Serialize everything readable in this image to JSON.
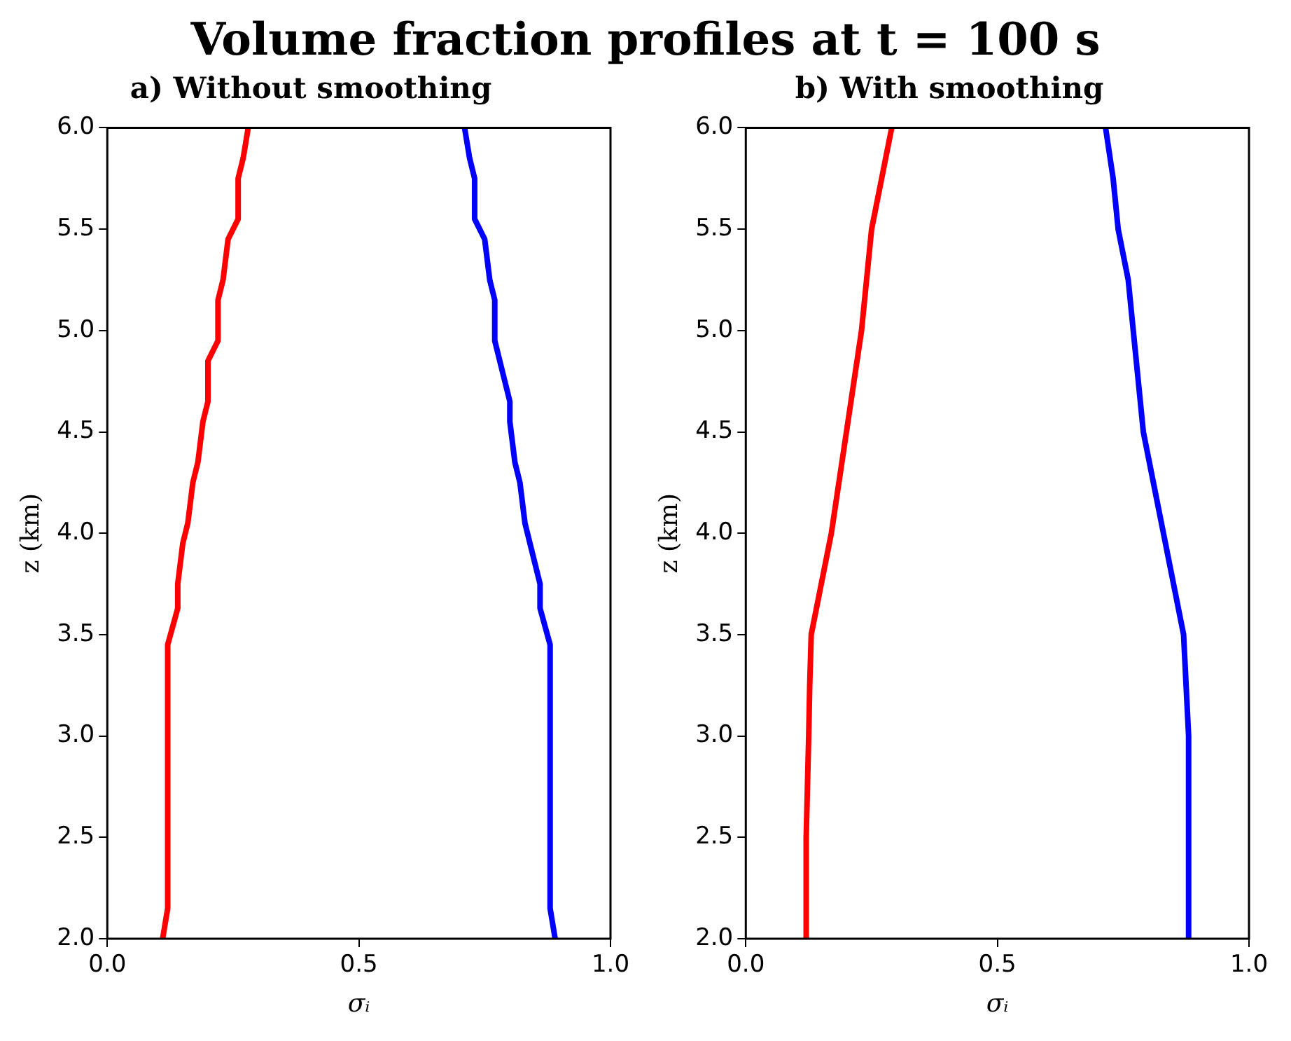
{
  "chart_data": [
    {
      "type": "line",
      "title": "Volume fraction profiles at t = 100 s",
      "subtitle": "a) Without smoothing",
      "xlabel": "σᵢ",
      "ylabel": "z (km)",
      "xlim": [
        0,
        1
      ],
      "xticks": [
        {
          "value": 0,
          "label": "0.0"
        },
        {
          "value": 0.5,
          "label": "0.5"
        },
        {
          "value": 1,
          "label": "1.0"
        }
      ],
      "ylim": [
        2,
        6
      ],
      "yticks": [
        {
          "value": 2,
          "label": "2.0"
        },
        {
          "value": 2.5,
          "label": "2.5"
        },
        {
          "value": 3,
          "label": "3.0"
        },
        {
          "value": 3.5,
          "label": "3.5"
        },
        {
          "value": 4,
          "label": "4.0"
        },
        {
          "value": 4.5,
          "label": "4.5"
        },
        {
          "value": 5,
          "label": "5.0"
        },
        {
          "value": 5.5,
          "label": "5.5"
        },
        {
          "value": 6,
          "label": "6.0"
        }
      ],
      "grid": false,
      "legend": false,
      "line_style": "solid",
      "marker": "none",
      "series": [
        {
          "color": "#ff0000",
          "x": [
            0.11,
            0.12,
            0.12,
            0.14,
            0.14,
            0.15,
            0.16,
            0.17,
            0.18,
            0.19,
            0.2,
            0.2,
            0.22,
            0.22,
            0.23,
            0.24,
            0.26,
            0.26,
            0.27,
            0.28
          ],
          "values": [
            2.0,
            2.15,
            3.45,
            3.63,
            3.75,
            3.95,
            4.05,
            4.25,
            4.35,
            4.55,
            4.65,
            4.85,
            4.95,
            5.15,
            5.25,
            5.45,
            5.55,
            5.75,
            5.85,
            6.0
          ]
        },
        {
          "color": "#0000ff",
          "x": [
            0.89,
            0.88,
            0.88,
            0.86,
            0.86,
            0.84,
            0.83,
            0.82,
            0.81,
            0.8,
            0.8,
            0.78,
            0.77,
            0.77,
            0.76,
            0.75,
            0.73,
            0.73,
            0.72,
            0.71
          ],
          "values": [
            2.0,
            2.15,
            3.45,
            3.63,
            3.75,
            3.95,
            4.05,
            4.25,
            4.35,
            4.55,
            4.65,
            4.85,
            4.95,
            5.15,
            5.25,
            5.45,
            5.55,
            5.75,
            5.85,
            6.0
          ]
        }
      ]
    },
    {
      "type": "line",
      "subtitle": "b) With smoothing",
      "xlabel": "σᵢ",
      "ylabel": "z (km)",
      "xlim": [
        0,
        1
      ],
      "xticks": [
        {
          "value": 0,
          "label": "0.0"
        },
        {
          "value": 0.5,
          "label": "0.5"
        },
        {
          "value": 1,
          "label": "1.0"
        }
      ],
      "ylim": [
        2,
        6
      ],
      "yticks": [
        {
          "value": 2,
          "label": "2.0"
        },
        {
          "value": 2.5,
          "label": "2.5"
        },
        {
          "value": 3,
          "label": "3.0"
        },
        {
          "value": 3.5,
          "label": "3.5"
        },
        {
          "value": 4,
          "label": "4.0"
        },
        {
          "value": 4.5,
          "label": "4.5"
        },
        {
          "value": 5,
          "label": "5.0"
        },
        {
          "value": 5.5,
          "label": "5.5"
        },
        {
          "value": 6,
          "label": "6.0"
        }
      ],
      "grid": false,
      "legend": false,
      "line_style": "solid",
      "marker": "none",
      "series": [
        {
          "color": "#ff0000",
          "x": [
            0.12,
            0.12,
            0.125,
            0.127,
            0.13,
            0.15,
            0.17,
            0.185,
            0.2,
            0.215,
            0.23,
            0.24,
            0.25,
            0.27,
            0.29
          ],
          "values": [
            2.0,
            2.5,
            3.0,
            3.25,
            3.5,
            3.75,
            4.0,
            4.25,
            4.5,
            4.75,
            5.0,
            5.25,
            5.5,
            5.75,
            6.0
          ]
        },
        {
          "color": "#0000ff",
          "x": [
            0.88,
            0.88,
            0.875,
            0.87,
            0.85,
            0.83,
            0.81,
            0.79,
            0.78,
            0.77,
            0.76,
            0.74,
            0.73,
            0.715
          ],
          "values": [
            2.0,
            3.0,
            3.25,
            3.5,
            3.75,
            4.0,
            4.25,
            4.5,
            4.75,
            5.0,
            5.25,
            5.5,
            5.75,
            6.0
          ]
        }
      ]
    }
  ]
}
